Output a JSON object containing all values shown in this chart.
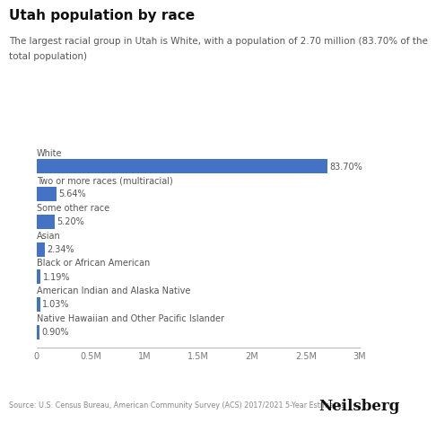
{
  "title": "Utah population by race",
  "subtitle_line1": "The largest racial group in Utah is White, with a population of 2.70 million (83.70% of the",
  "subtitle_line2": "total population)",
  "categories": [
    "White",
    "Two or more races (multiracial)",
    "Some other race",
    "Asian",
    "Black or African American",
    "American Indian and Alaska Native",
    "Native Hawaiian and Other Pacific Islander"
  ],
  "values": [
    2700000,
    181900,
    167800,
    75500,
    38400,
    33200,
    29000
  ],
  "percentages": [
    "83.70%",
    "5.64%",
    "5.20%",
    "2.34%",
    "1.19%",
    "1.03%",
    "0.90%"
  ],
  "bar_color": "#4472C4",
  "background_color": "#ffffff",
  "xlim": [
    0,
    3000000
  ],
  "xticks": [
    0,
    500000,
    1000000,
    1500000,
    2000000,
    2500000,
    3000000
  ],
  "xtick_labels": [
    "0",
    "0.5M",
    "1M",
    "1.5M",
    "2M",
    "2.5M",
    "3M"
  ],
  "source_text": "Source: U.S. Census Bureau, American Community Survey (ACS) 2017/2021 5-Year Estimates",
  "brand_text": "Neilsberg",
  "title_fontsize": 11,
  "subtitle_fontsize": 7.5,
  "category_fontsize": 7,
  "bar_label_fontsize": 7,
  "axis_fontsize": 7,
  "source_fontsize": 5.8,
  "brand_fontsize": 12
}
